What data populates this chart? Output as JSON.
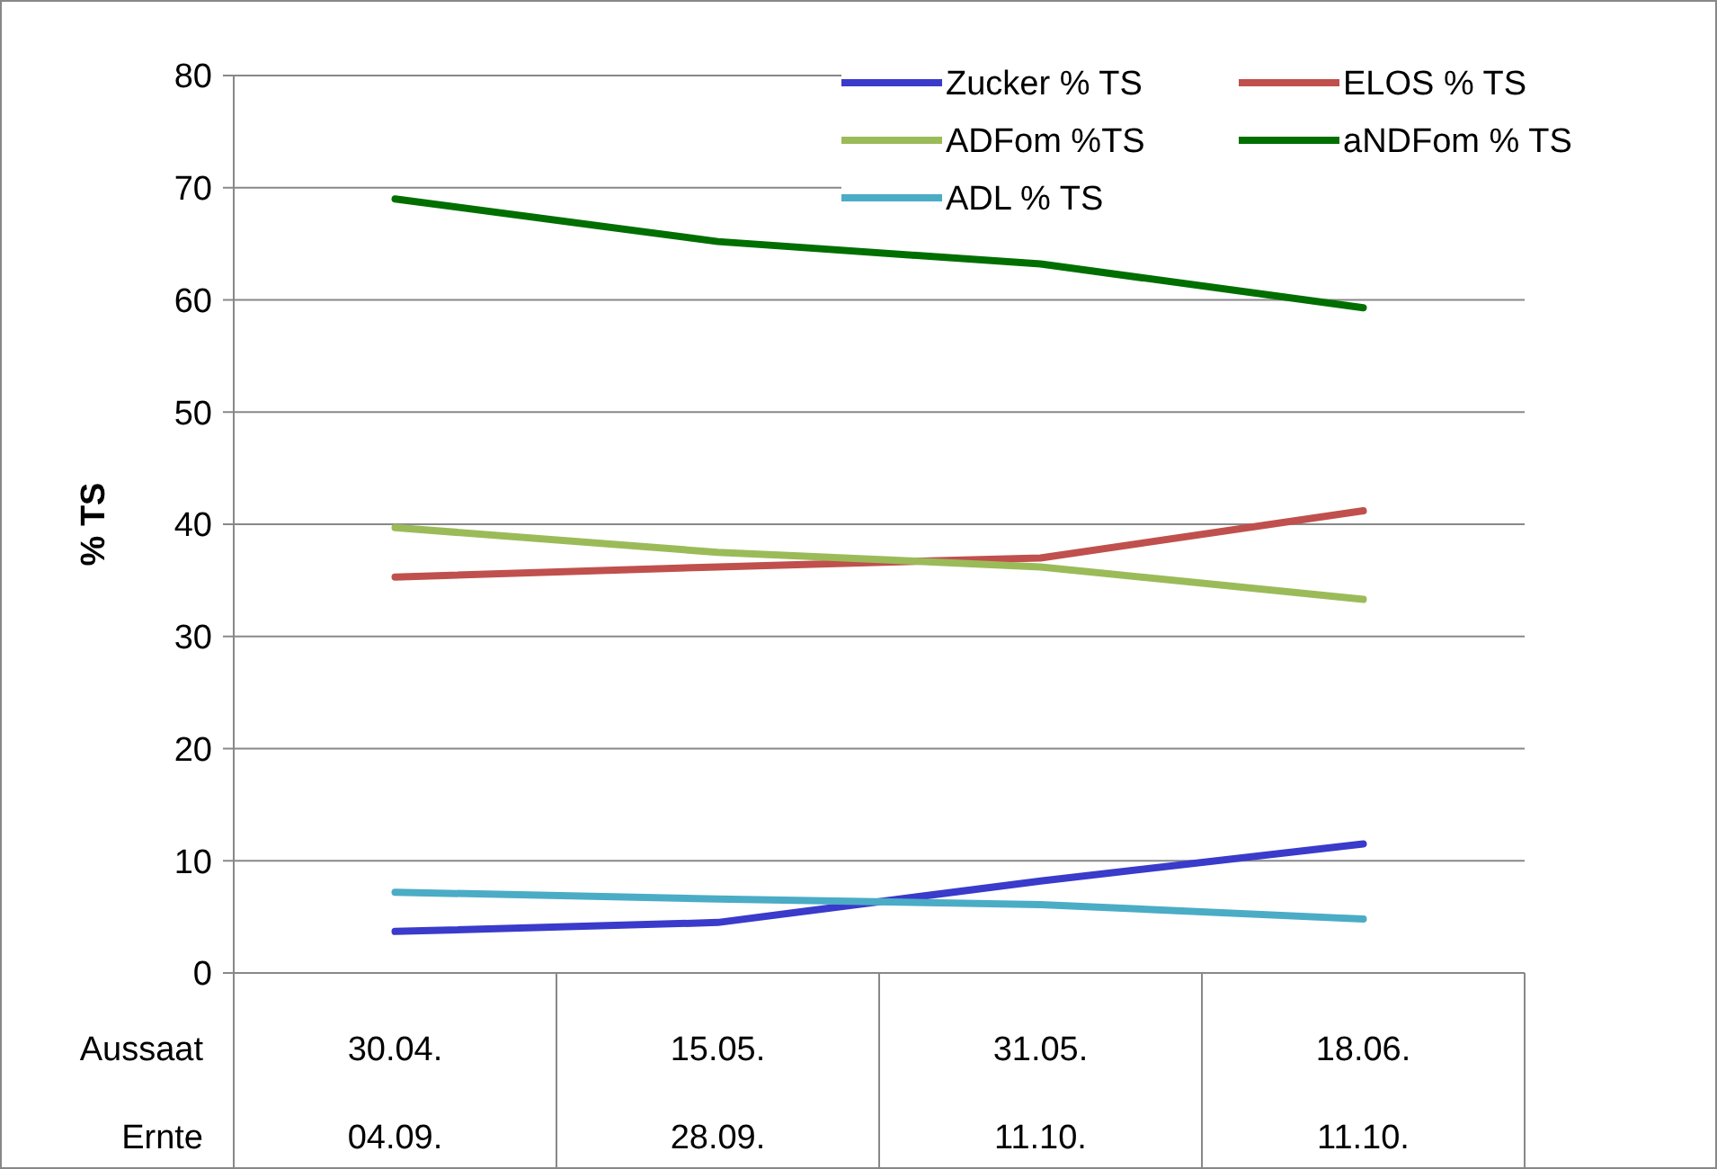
{
  "chart_data": {
    "type": "line",
    "ylabel": "% TS",
    "categories": [
      "30.04.\n04.09.",
      "15.05.\n28.09.",
      "31.05.\n11.10.",
      "18.06.\n11.10."
    ],
    "annotations": [
      "Aussaat",
      "Ernte"
    ],
    "series": [
      {
        "name": "Zucker % TS",
        "color": "#3a3acb",
        "values": [
          3.7,
          4.5,
          8.2,
          11.5
        ]
      },
      {
        "name": "ELOS % TS",
        "color": "#c0504d",
        "values": [
          35.3,
          36.2,
          37.0,
          41.2
        ]
      },
      {
        "name": "ADFom %TS",
        "color": "#9bbb59",
        "values": [
          39.7,
          37.5,
          36.2,
          33.3
        ]
      },
      {
        "name": "aNDFom % TS",
        "color": "#006f00",
        "values": [
          69.0,
          65.2,
          63.2,
          59.3
        ]
      },
      {
        "name": "ADL % TS",
        "color": "#4bacc6",
        "values": [
          7.2,
          6.6,
          6.1,
          4.8
        ]
      }
    ],
    "ylim": [
      0,
      80
    ],
    "yticks": [
      0,
      10,
      20,
      30,
      40,
      50,
      60,
      70,
      80
    ],
    "grid": "y",
    "legend": "top right",
    "marker": "none",
    "line_style": "solid"
  }
}
